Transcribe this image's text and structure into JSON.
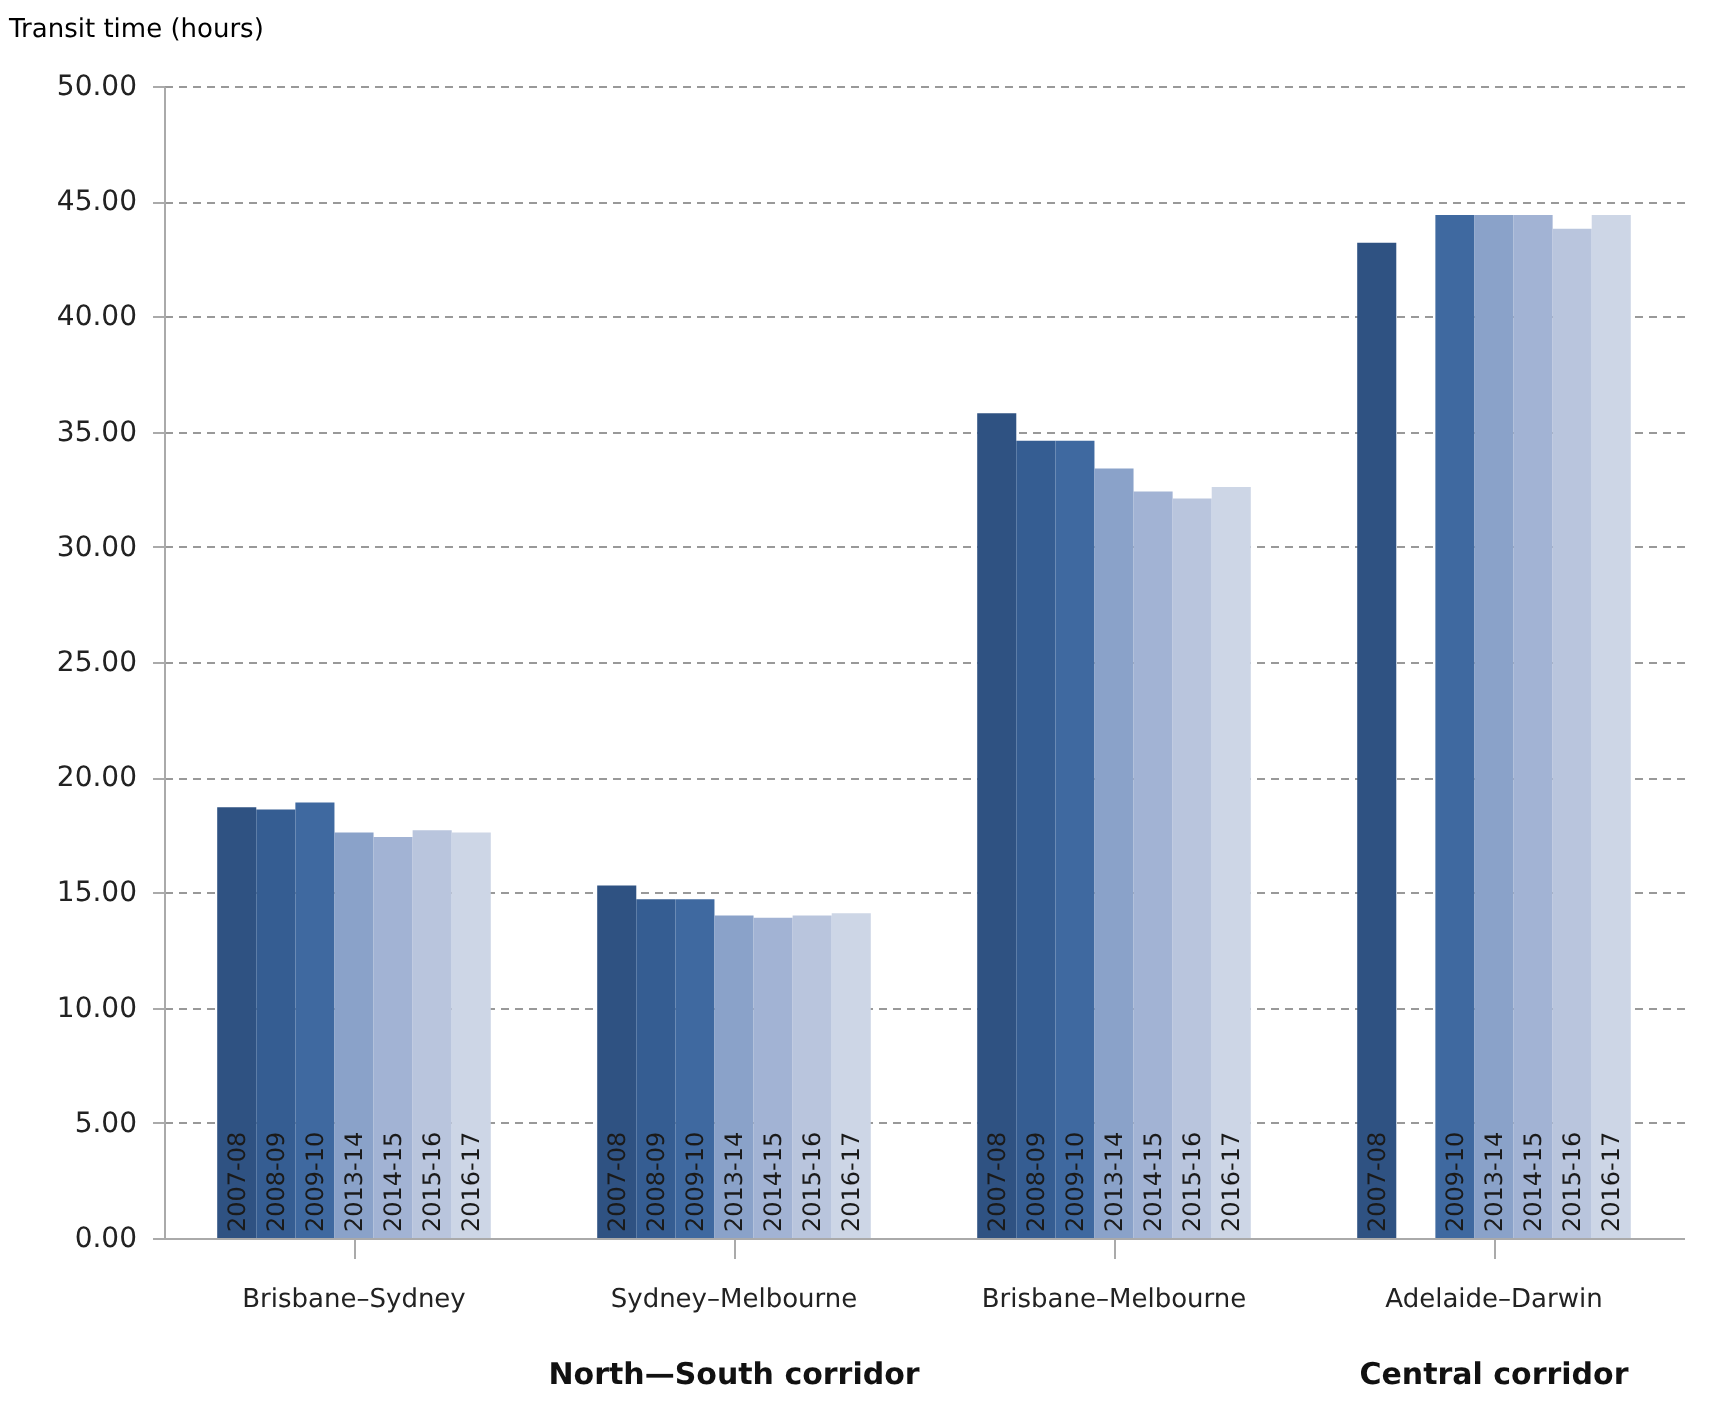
{
  "chart_data": {
    "type": "bar",
    "ylabel": "Transit time (hours)",
    "categories": [
      "Brisbane–Sydney",
      "Sydney–Melbourne",
      "Brisbane–Melbourne",
      "Adelaide–Darwin"
    ],
    "series": [
      {
        "name": "2007-08",
        "color": "#2f5282",
        "values": [
          18.7,
          15.3,
          35.8,
          43.2
        ]
      },
      {
        "name": "2008-09",
        "color": "#355d92",
        "values": [
          18.6,
          14.7,
          34.6,
          null
        ]
      },
      {
        "name": "2009-10",
        "color": "#3f69a0",
        "values": [
          18.9,
          14.7,
          34.6,
          44.4
        ]
      },
      {
        "name": "2013-14",
        "color": "#8aa2c9",
        "values": [
          17.6,
          14.0,
          33.4,
          44.4
        ]
      },
      {
        "name": "2014-15",
        "color": "#a2b3d4",
        "values": [
          17.4,
          13.9,
          32.4,
          44.4
        ]
      },
      {
        "name": "2015-16",
        "color": "#b9c5dd",
        "values": [
          17.7,
          14.0,
          32.1,
          43.8
        ]
      },
      {
        "name": "2016-17",
        "color": "#cdd6e6",
        "values": [
          17.6,
          14.1,
          32.6,
          44.4
        ]
      }
    ],
    "ylim": [
      0,
      50
    ],
    "yticks": [
      {
        "value": 0,
        "label": "0.00"
      },
      {
        "value": 5,
        "label": "5.00"
      },
      {
        "value": 10,
        "label": "10.00"
      },
      {
        "value": 15,
        "label": "15.00"
      },
      {
        "value": 20,
        "label": "20.00"
      },
      {
        "value": 25,
        "label": "25.00"
      },
      {
        "value": 30,
        "label": "30.00"
      },
      {
        "value": 35,
        "label": "35.00"
      },
      {
        "value": 40,
        "label": "40.00"
      },
      {
        "value": 45,
        "label": "45.00"
      },
      {
        "value": 50,
        "label": "50.00"
      }
    ],
    "grid": "y",
    "legend": false,
    "annotations": [
      "North—South corridor",
      "Central corridor"
    ]
  }
}
